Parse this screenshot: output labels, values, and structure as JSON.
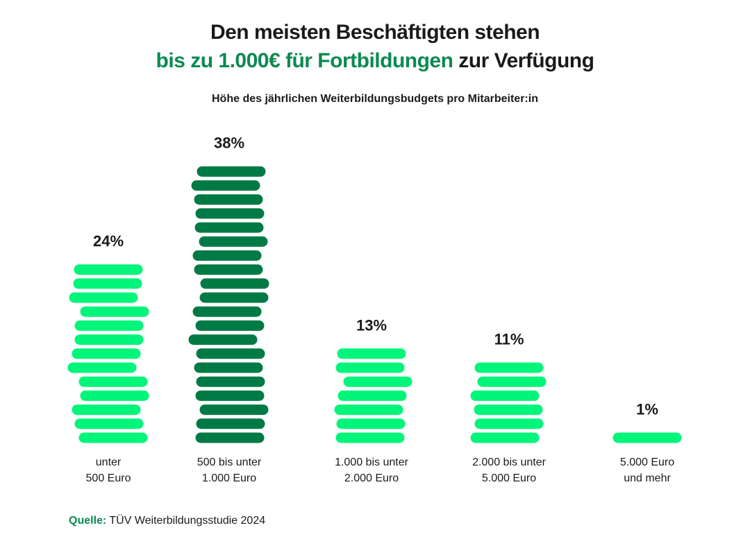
{
  "title_line1": "Den meisten Beschäftigten stehen",
  "title_line2_highlight": "bis zu 1.000€ für Fortbildungen",
  "title_line2_rest": " zur Verfügung",
  "subtitle": "Höhe des jährlichen  Weiterbildungsbudgets pro Mitarbeiter:in",
  "source_label": "Quelle:",
  "source_text": " TÜV Weiterbildungsstudie 2024",
  "colors": {
    "highlight": "#0b8a50",
    "light_coin": "#00f57a",
    "dark_coin": "#007a45"
  },
  "chart_data": {
    "type": "bar",
    "style": "stacked coin pictogram",
    "categories": [
      [
        "unter",
        "500 Euro"
      ],
      [
        "500 bis unter",
        "1.000 Euro"
      ],
      [
        "1.000 bis unter",
        "2.000 Euro"
      ],
      [
        "2.000 bis unter",
        "5.000 Euro"
      ],
      [
        "5.000 Euro",
        "und mehr"
      ]
    ],
    "values": [
      24,
      38,
      13,
      11,
      1
    ],
    "value_labels": [
      "24%",
      "38%",
      "13%",
      "11%",
      "1%"
    ],
    "highlighted_category_index": 1,
    "unit": "%",
    "grid": false
  }
}
